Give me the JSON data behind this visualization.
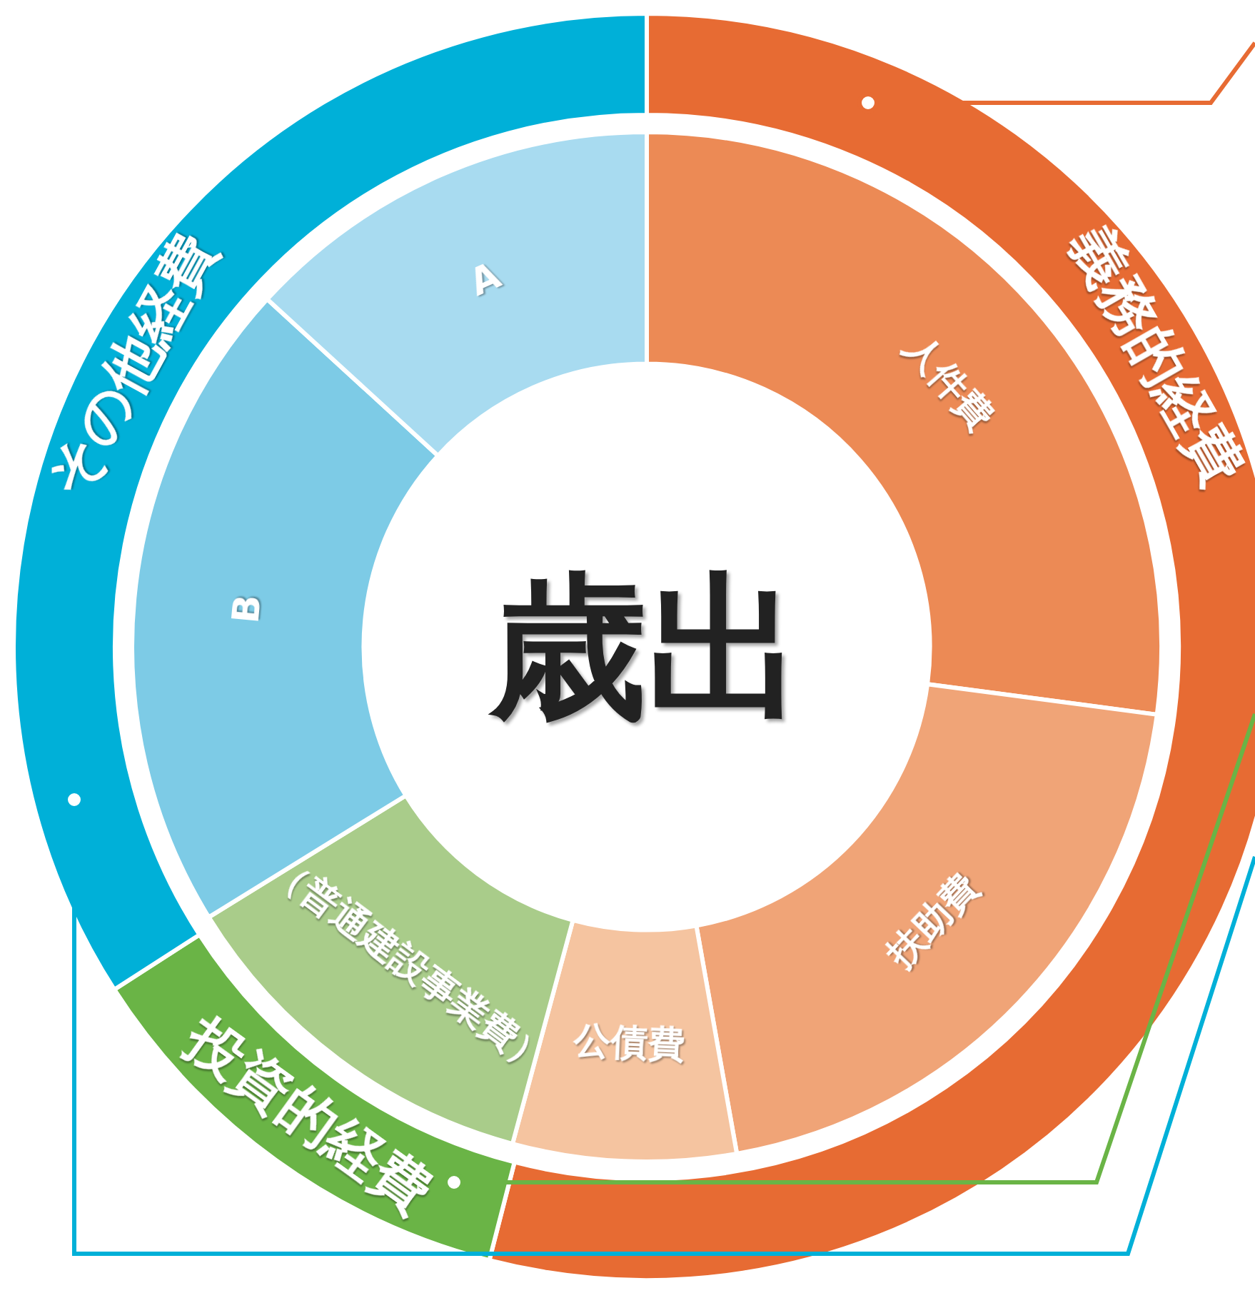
{
  "chart_data": [
    {
      "type": "donut",
      "categories": [
        "義務的経費",
        "投資的経費",
        "その他経費"
      ],
      "values": [
        54.0,
        11.9,
        34.1
      ],
      "colors": [
        "#e76b33",
        "#6ab446",
        "#00b0d8"
      ]
    },
    {
      "type": "donut",
      "title": "歳出",
      "categories": [
        "人件費",
        "扶助費",
        "公債費",
        "（普通建設事業費）",
        "B",
        "A"
      ],
      "values": [
        27.1,
        20.1,
        7.0,
        12.0,
        20.6,
        13.2
      ],
      "colors": [
        "#ec8a55",
        "#f0a477",
        "#f5c4a0",
        "#a9cc8a",
        "#7dcbe6",
        "#a8dbf0"
      ]
    }
  ]
}
